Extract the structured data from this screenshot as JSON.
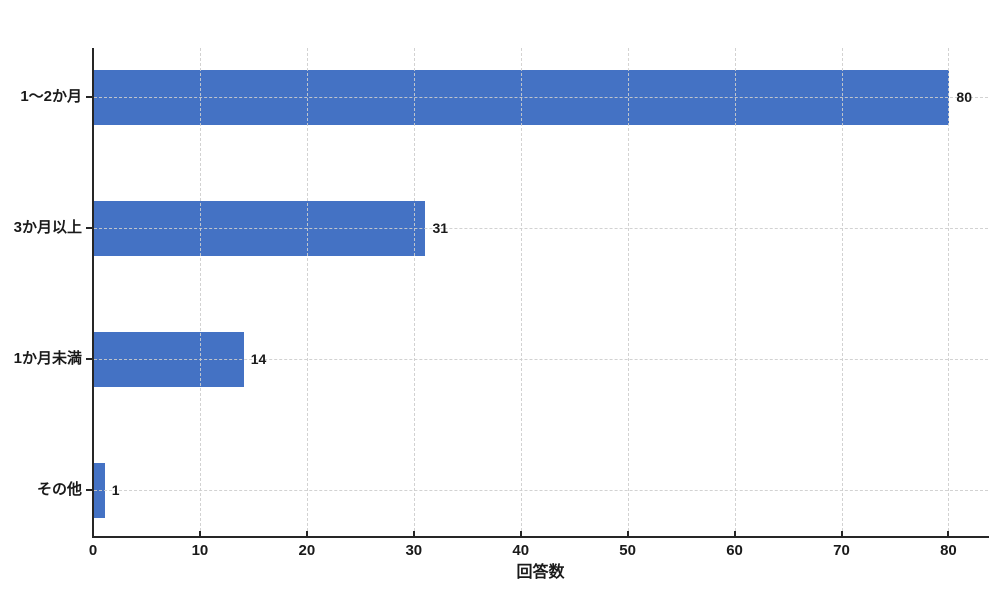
{
  "chart_data": {
    "type": "bar",
    "orientation": "horizontal",
    "title": "",
    "xlabel": "回答数",
    "ylabel": "",
    "categories": [
      "1〜2か月",
      "3か月以上",
      "1か月未満",
      "その他"
    ],
    "values": [
      80,
      31,
      14,
      1
    ],
    "value_labels": [
      "80",
      "31",
      "14",
      "1"
    ],
    "xticks": [
      0,
      10,
      20,
      30,
      40,
      50,
      60,
      70,
      80
    ],
    "xtick_labels": [
      "0",
      "10",
      "20",
      "30",
      "40",
      "50",
      "60",
      "70",
      "80"
    ],
    "xlim": [
      0,
      83.7
    ],
    "grid": "dashed",
    "legend": "none",
    "colors": {
      "bar": "#4472c4",
      "grid": "#cdcdcd",
      "axis": "#262626",
      "text": "#1a1a1a",
      "background": "#ffffff"
    }
  }
}
